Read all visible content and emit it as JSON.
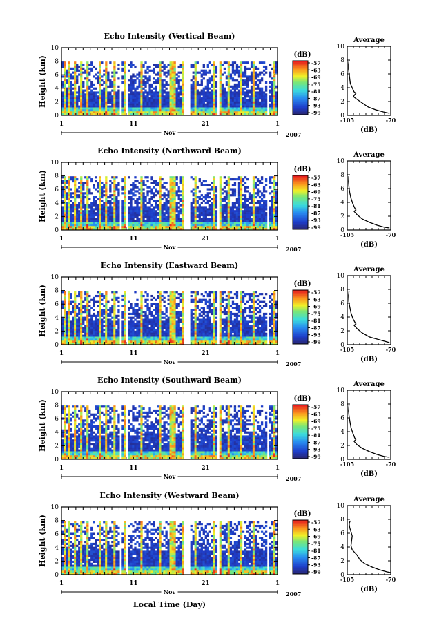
{
  "figure": {
    "xlabel": "Local Time (Day)"
  },
  "chart_data": [
    {
      "type": "heatmap",
      "title": "Echo Intensity (Vertical Beam)",
      "ylabel": "Height (km)",
      "ylim": [
        0,
        10
      ],
      "yticks": [
        "0",
        "2",
        "4",
        "6",
        "8",
        "10"
      ],
      "xticks": [
        "1",
        "11",
        "21",
        "1"
      ],
      "month_label": "Nov",
      "year_label": "2007",
      "colorbar": {
        "unit": "(dB)",
        "ticks": [
          "-57",
          "-63",
          "-69",
          "-75",
          "-81",
          "-87",
          "-93",
          "-99"
        ]
      },
      "profile": {
        "title": "Average",
        "xlabel": "(dB)",
        "xticks": [
          "-105",
          "-70"
        ],
        "xlim": [
          -105,
          -70
        ],
        "yticks": [
          "0",
          "2",
          "4",
          "6",
          "8",
          "10"
        ],
        "ylim": [
          0,
          10
        ],
        "points": [
          [
            -103.5,
            8
          ],
          [
            -104,
            7.4
          ],
          [
            -104,
            6.7
          ],
          [
            -103.5,
            6.1
          ],
          [
            -103,
            5.3
          ],
          [
            -102.5,
            4.6
          ],
          [
            -101,
            4.0
          ],
          [
            -99.5,
            3.4
          ],
          [
            -98,
            3.2
          ],
          [
            -99,
            3.0
          ],
          [
            -100,
            2.7
          ],
          [
            -97,
            2.3
          ],
          [
            -93,
            1.8
          ],
          [
            -88,
            1.2
          ],
          [
            -82,
            0.8
          ],
          [
            -76,
            0.5
          ],
          [
            -71,
            0.3
          ]
        ]
      }
    },
    {
      "type": "heatmap",
      "title": "Echo Intensity (Northward Beam)",
      "ylabel": "Height (km)",
      "ylim": [
        0,
        10
      ],
      "yticks": [
        "0",
        "2",
        "4",
        "6",
        "8",
        "10"
      ],
      "xticks": [
        "1",
        "11",
        "21",
        "1"
      ],
      "month_label": "Nov",
      "year_label": "2007",
      "colorbar": {
        "unit": "(dB)",
        "ticks": [
          "-57",
          "-63",
          "-69",
          "-75",
          "-81",
          "-87",
          "-93",
          "-99"
        ]
      },
      "profile": {
        "title": "Average",
        "xlabel": "(dB)",
        "xticks": [
          "-105",
          "-70"
        ],
        "xlim": [
          -105,
          -70
        ],
        "yticks": [
          "0",
          "2",
          "4",
          "6",
          "8",
          "10"
        ],
        "ylim": [
          0,
          10
        ],
        "points": [
          [
            -103.8,
            7.8
          ],
          [
            -104,
            7.0
          ],
          [
            -103.6,
            6.2
          ],
          [
            -103,
            5.4
          ],
          [
            -102,
            4.6
          ],
          [
            -100.5,
            3.8
          ],
          [
            -99,
            3.2
          ],
          [
            -98,
            2.9
          ],
          [
            -99.5,
            2.7
          ],
          [
            -97,
            2.2
          ],
          [
            -93,
            1.6
          ],
          [
            -87,
            1.1
          ],
          [
            -81,
            0.7
          ],
          [
            -75,
            0.4
          ],
          [
            -71,
            0.3
          ]
        ]
      }
    },
    {
      "type": "heatmap",
      "title": "Echo Intensity (Eastward Beam)",
      "ylabel": "Height (km)",
      "ylim": [
        0,
        10
      ],
      "yticks": [
        "0",
        "2",
        "4",
        "6",
        "8",
        "10"
      ],
      "xticks": [
        "1",
        "11",
        "21",
        "1"
      ],
      "month_label": "Nov",
      "year_label": "2007",
      "colorbar": {
        "unit": "(dB)",
        "ticks": [
          "-57",
          "-63",
          "-69",
          "-75",
          "-81",
          "-87",
          "-93",
          "-99"
        ]
      },
      "profile": {
        "title": "Average",
        "xlabel": "(dB)",
        "xticks": [
          "-105",
          "-70"
        ],
        "xlim": [
          -105,
          -70
        ],
        "yticks": [
          "0",
          "2",
          "4",
          "6",
          "8",
          "10"
        ],
        "ylim": [
          0,
          10
        ],
        "points": [
          [
            -103.5,
            7.8
          ],
          [
            -104,
            7.1
          ],
          [
            -103.8,
            6.3
          ],
          [
            -103,
            5.5
          ],
          [
            -102,
            4.6
          ],
          [
            -100.5,
            3.8
          ],
          [
            -99,
            3.3
          ],
          [
            -98,
            3.0
          ],
          [
            -99.5,
            2.8
          ],
          [
            -97,
            2.3
          ],
          [
            -93,
            1.7
          ],
          [
            -87,
            1.1
          ],
          [
            -81,
            0.8
          ],
          [
            -75,
            0.5
          ],
          [
            -71,
            0.3
          ]
        ]
      }
    },
    {
      "type": "heatmap",
      "title": "Echo Intensity (Southward Beam)",
      "ylabel": "Height (km)",
      "ylim": [
        0,
        10
      ],
      "yticks": [
        "0",
        "2",
        "4",
        "6",
        "8",
        "10"
      ],
      "xticks": [
        "1",
        "11",
        "21",
        "1"
      ],
      "month_label": "Nov",
      "year_label": "2007",
      "colorbar": {
        "unit": "(dB)",
        "ticks": [
          "-57",
          "-63",
          "-69",
          "-75",
          "-81",
          "-87",
          "-93",
          "-99"
        ]
      },
      "profile": {
        "title": "Average",
        "xlabel": "(dB)",
        "xticks": [
          "-105",
          "-70"
        ],
        "xlim": [
          -105,
          -70
        ],
        "yticks": [
          "0",
          "2",
          "4",
          "6",
          "8",
          "10"
        ],
        "ylim": [
          0,
          10
        ],
        "points": [
          [
            -103.6,
            7.8
          ],
          [
            -104,
            7.0
          ],
          [
            -103.5,
            6.2
          ],
          [
            -102.8,
            5.4
          ],
          [
            -102,
            4.6
          ],
          [
            -100.5,
            3.8
          ],
          [
            -99,
            3.1
          ],
          [
            -98,
            2.9
          ],
          [
            -99.5,
            2.6
          ],
          [
            -97,
            2.1
          ],
          [
            -93,
            1.6
          ],
          [
            -87,
            1.1
          ],
          [
            -81,
            0.7
          ],
          [
            -75,
            0.4
          ],
          [
            -71,
            0.3
          ]
        ]
      }
    },
    {
      "type": "heatmap",
      "title": "Echo Intensity (Westward Beam)",
      "ylabel": "Height (km)",
      "ylim": [
        0,
        10
      ],
      "yticks": [
        "0",
        "2",
        "4",
        "6",
        "8",
        "10"
      ],
      "xticks": [
        "1",
        "11",
        "21",
        "1"
      ],
      "month_label": "Nov",
      "year_label": "2007",
      "colorbar": {
        "unit": "(dB)",
        "ticks": [
          "-57",
          "-63",
          "-69",
          "-75",
          "-81",
          "-87",
          "-93",
          "-99"
        ]
      },
      "profile": {
        "title": "Average",
        "xlabel": "(dB)",
        "xticks": [
          "-105",
          "-70"
        ],
        "xlim": [
          -105,
          -70
        ],
        "yticks": [
          "0",
          "2",
          "4",
          "6",
          "8",
          "10"
        ],
        "ylim": [
          0,
          10
        ],
        "points": [
          [
            -102.5,
            7.8
          ],
          [
            -103.5,
            7.4
          ],
          [
            -103,
            6.8
          ],
          [
            -102,
            6.2
          ],
          [
            -101,
            5.6
          ],
          [
            -101.5,
            4.9
          ],
          [
            -102,
            4.2
          ],
          [
            -101,
            3.6
          ],
          [
            -99,
            3.2
          ],
          [
            -97,
            2.8
          ],
          [
            -95,
            2.2
          ],
          [
            -91,
            1.6
          ],
          [
            -85,
            1.1
          ],
          [
            -79,
            0.7
          ],
          [
            -73,
            0.4
          ],
          [
            -70,
            0.3
          ]
        ]
      }
    }
  ]
}
